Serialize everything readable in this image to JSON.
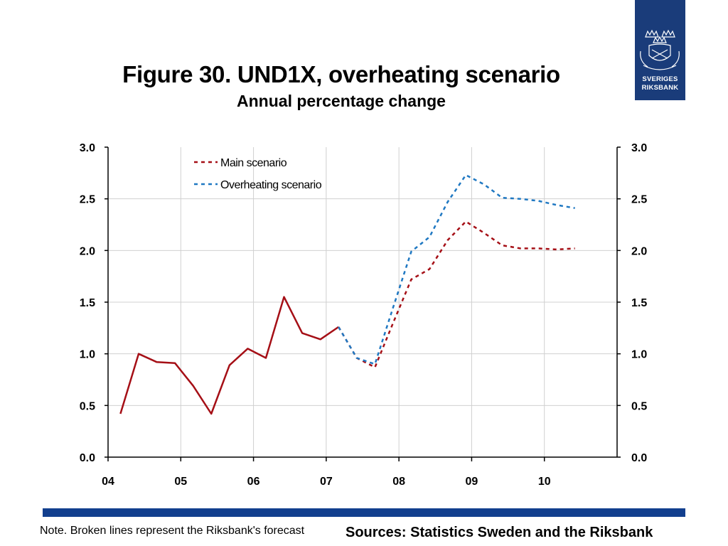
{
  "header": {
    "title": "Figure 30. UND1X, overheating scenario",
    "subtitle": "Annual percentage change"
  },
  "logo": {
    "line1": "SVERIGES",
    "line2": "RIKSBANK",
    "icon": "riksbank-crest-icon"
  },
  "footer": {
    "note": "Note. Broken lines represent the Riksbank's forecast",
    "sources": "Sources: Statistics Sweden and the Riksbank"
  },
  "colors": {
    "main": "#a50f16",
    "overheating": "#1f78c2",
    "brand_bar": "#123f8e",
    "logo_bg": "#1a3c7a"
  },
  "chart_data": {
    "type": "line",
    "title": "Figure 30. UND1X, overheating scenario",
    "subtitle": "Annual percentage change",
    "xlabel": "",
    "ylabel": "",
    "xlim": [
      2004.0,
      2011.0
    ],
    "ylim": [
      0.0,
      3.0
    ],
    "x_ticks": [
      {
        "value": 2004,
        "label": "04"
      },
      {
        "value": 2005,
        "label": "05"
      },
      {
        "value": 2006,
        "label": "06"
      },
      {
        "value": 2007,
        "label": "07"
      },
      {
        "value": 2008,
        "label": "08"
      },
      {
        "value": 2009,
        "label": "09"
      },
      {
        "value": 2010,
        "label": "10"
      }
    ],
    "y_ticks": [
      {
        "value": 0.0,
        "label": "0.0"
      },
      {
        "value": 0.5,
        "label": "0.5"
      },
      {
        "value": 1.0,
        "label": "1.0"
      },
      {
        "value": 1.5,
        "label": "1.5"
      },
      {
        "value": 2.0,
        "label": "2.0"
      },
      {
        "value": 2.5,
        "label": "2.5"
      },
      {
        "value": 3.0,
        "label": "3.0"
      }
    ],
    "grid": true,
    "dual_y_axis": true,
    "legend_position": "top-center",
    "series": [
      {
        "name": "Main scenario",
        "role": "outcome",
        "color": "#a50f16",
        "dashed": false,
        "x": [
          2004.17,
          2004.42,
          2004.67,
          2004.92,
          2005.17,
          2005.42,
          2005.67,
          2005.92,
          2006.17,
          2006.42,
          2006.67,
          2006.92,
          2007.17
        ],
        "y": [
          0.42,
          1.0,
          0.92,
          0.91,
          0.69,
          0.42,
          0.89,
          1.05,
          0.96,
          1.55,
          1.2,
          1.14,
          1.26
        ]
      },
      {
        "name": "Main scenario",
        "role": "forecast",
        "color": "#a50f16",
        "dashed": true,
        "x": [
          2007.17,
          2007.42,
          2007.67,
          2007.92,
          2008.17,
          2008.42,
          2008.67,
          2008.92,
          2009.17,
          2009.42,
          2009.67,
          2009.92,
          2010.17,
          2010.42
        ],
        "y": [
          1.26,
          0.96,
          0.87,
          1.3,
          1.72,
          1.82,
          2.1,
          2.28,
          2.17,
          2.05,
          2.02,
          2.02,
          2.01,
          2.02
        ]
      },
      {
        "name": "Overheating scenario",
        "role": "forecast",
        "color": "#1f78c2",
        "dashed": true,
        "x": [
          2007.17,
          2007.42,
          2007.67,
          2007.92,
          2008.17,
          2008.42,
          2008.67,
          2008.92,
          2009.17,
          2009.42,
          2009.67,
          2009.92,
          2010.17,
          2010.42
        ],
        "y": [
          1.26,
          0.96,
          0.9,
          1.45,
          1.99,
          2.13,
          2.47,
          2.73,
          2.64,
          2.51,
          2.5,
          2.48,
          2.44,
          2.41
        ]
      }
    ],
    "legend": [
      {
        "label": "Main scenario",
        "color": "#a50f16"
      },
      {
        "label": "Overheating scenario",
        "color": "#1f78c2"
      }
    ]
  }
}
